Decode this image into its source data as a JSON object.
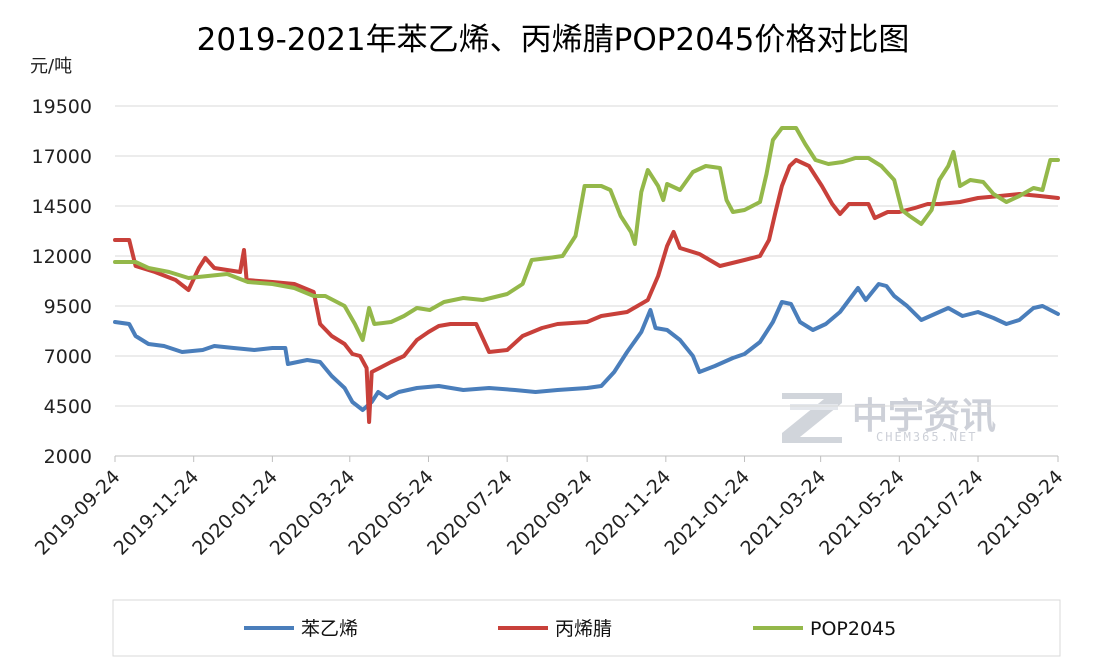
{
  "chart_data": {
    "type": "line",
    "title": "2019-2021年苯乙烯、丙烯腈POP2045价格对比图",
    "ylabel": "元/吨",
    "ylim": [
      2000,
      19500
    ],
    "yticks": [
      2000,
      4500,
      7000,
      9500,
      12000,
      14500,
      17000,
      19500
    ],
    "x_ticks": [
      "2019-09-24",
      "2019-11-24",
      "2020-01-24",
      "2020-03-24",
      "2020-05-24",
      "2020-07-24",
      "2020-09-24",
      "2020-11-24",
      "2021-01-24",
      "2021-03-24",
      "2021-05-24",
      "2021-07-24",
      "2021-09-24"
    ],
    "xlim": [
      "2019-09-24",
      "2021-09-24"
    ],
    "grid": "horizontal",
    "legend_position": "bottom",
    "colors": {
      "苯乙烯": "#4a7ebb",
      "丙烯腈": "#c8403a",
      "POP2045": "#94b84a"
    },
    "series": [
      {
        "name": "苯乙烯",
        "points": [
          [
            "2019-09-24",
            8700
          ],
          [
            "2019-10-05",
            8600
          ],
          [
            "2019-10-10",
            8000
          ],
          [
            "2019-10-20",
            7600
          ],
          [
            "2019-11-01",
            7500
          ],
          [
            "2019-11-15",
            7200
          ],
          [
            "2019-12-01",
            7300
          ],
          [
            "2019-12-10",
            7500
          ],
          [
            "2019-12-25",
            7400
          ],
          [
            "2020-01-10",
            7300
          ],
          [
            "2020-01-24",
            7400
          ],
          [
            "2020-02-03",
            7400
          ],
          [
            "2020-02-05",
            6600
          ],
          [
            "2020-02-20",
            6800
          ],
          [
            "2020-03-01",
            6700
          ],
          [
            "2020-03-10",
            6000
          ],
          [
            "2020-03-20",
            5400
          ],
          [
            "2020-03-26",
            4700
          ],
          [
            "2020-04-03",
            4300
          ],
          [
            "2020-04-10",
            4700
          ],
          [
            "2020-04-15",
            5200
          ],
          [
            "2020-04-22",
            4900
          ],
          [
            "2020-05-01",
            5200
          ],
          [
            "2020-05-15",
            5400
          ],
          [
            "2020-06-01",
            5500
          ],
          [
            "2020-06-20",
            5300
          ],
          [
            "2020-07-10",
            5400
          ],
          [
            "2020-07-30",
            5300
          ],
          [
            "2020-08-15",
            5200
          ],
          [
            "2020-09-01",
            5300
          ],
          [
            "2020-09-24",
            5400
          ],
          [
            "2020-10-05",
            5500
          ],
          [
            "2020-10-15",
            6200
          ],
          [
            "2020-10-25",
            7200
          ],
          [
            "2020-11-05",
            8200
          ],
          [
            "2020-11-12",
            9300
          ],
          [
            "2020-11-16",
            8400
          ],
          [
            "2020-11-25",
            8300
          ],
          [
            "2020-12-05",
            7800
          ],
          [
            "2020-12-15",
            7000
          ],
          [
            "2020-12-20",
            6200
          ],
          [
            "2021-01-01",
            6500
          ],
          [
            "2021-01-15",
            6900
          ],
          [
            "2021-01-24",
            7100
          ],
          [
            "2021-02-05",
            7700
          ],
          [
            "2021-02-15",
            8700
          ],
          [
            "2021-02-22",
            9700
          ],
          [
            "2021-03-01",
            9600
          ],
          [
            "2021-03-08",
            8700
          ],
          [
            "2021-03-18",
            8300
          ],
          [
            "2021-03-28",
            8600
          ],
          [
            "2021-04-08",
            9200
          ],
          [
            "2021-04-15",
            9800
          ],
          [
            "2021-04-22",
            10400
          ],
          [
            "2021-04-28",
            9800
          ],
          [
            "2021-05-08",
            10600
          ],
          [
            "2021-05-14",
            10500
          ],
          [
            "2021-05-20",
            10000
          ],
          [
            "2021-05-30",
            9500
          ],
          [
            "2021-06-10",
            8800
          ],
          [
            "2021-06-24",
            9200
          ],
          [
            "2021-07-01",
            9400
          ],
          [
            "2021-07-12",
            9000
          ],
          [
            "2021-07-24",
            9200
          ],
          [
            "2021-08-05",
            8900
          ],
          [
            "2021-08-15",
            8600
          ],
          [
            "2021-08-25",
            8800
          ],
          [
            "2021-09-05",
            9400
          ],
          [
            "2021-09-12",
            9500
          ],
          [
            "2021-09-24",
            9100
          ]
        ]
      },
      {
        "name": "丙烯腈",
        "points": [
          [
            "2019-09-24",
            12800
          ],
          [
            "2019-10-05",
            12800
          ],
          [
            "2019-10-10",
            11500
          ],
          [
            "2019-10-25",
            11200
          ],
          [
            "2019-11-10",
            10800
          ],
          [
            "2019-11-20",
            10300
          ],
          [
            "2019-11-28",
            11400
          ],
          [
            "2019-12-03",
            11900
          ],
          [
            "2019-12-10",
            11400
          ],
          [
            "2019-12-30",
            11200
          ],
          [
            "2020-01-02",
            12300
          ],
          [
            "2020-01-04",
            10800
          ],
          [
            "2020-01-24",
            10700
          ],
          [
            "2020-02-10",
            10600
          ],
          [
            "2020-02-25",
            10200
          ],
          [
            "2020-03-01",
            8600
          ],
          [
            "2020-03-10",
            8000
          ],
          [
            "2020-03-20",
            7600
          ],
          [
            "2020-03-26",
            7100
          ],
          [
            "2020-04-01",
            7000
          ],
          [
            "2020-04-06",
            6400
          ],
          [
            "2020-04-08",
            3700
          ],
          [
            "2020-04-10",
            6200
          ],
          [
            "2020-04-25",
            6700
          ],
          [
            "2020-05-05",
            7000
          ],
          [
            "2020-05-15",
            7800
          ],
          [
            "2020-05-24",
            8200
          ],
          [
            "2020-06-01",
            8500
          ],
          [
            "2020-06-10",
            8600
          ],
          [
            "2020-06-30",
            8600
          ],
          [
            "2020-07-10",
            7200
          ],
          [
            "2020-07-24",
            7300
          ],
          [
            "2020-08-05",
            8000
          ],
          [
            "2020-08-20",
            8400
          ],
          [
            "2020-09-01",
            8600
          ],
          [
            "2020-09-24",
            8700
          ],
          [
            "2020-10-05",
            9000
          ],
          [
            "2020-10-25",
            9200
          ],
          [
            "2020-11-10",
            9800
          ],
          [
            "2020-11-18",
            11000
          ],
          [
            "2020-11-25",
            12500
          ],
          [
            "2020-11-30",
            13200
          ],
          [
            "2020-12-05",
            12400
          ],
          [
            "2020-12-20",
            12100
          ],
          [
            "2021-01-05",
            11500
          ],
          [
            "2021-01-24",
            11800
          ],
          [
            "2021-02-05",
            12000
          ],
          [
            "2021-02-12",
            12800
          ],
          [
            "2021-02-17",
            14200
          ],
          [
            "2021-02-22",
            15500
          ],
          [
            "2021-02-28",
            16500
          ],
          [
            "2021-03-05",
            16800
          ],
          [
            "2021-03-15",
            16500
          ],
          [
            "2021-03-25",
            15500
          ],
          [
            "2021-04-02",
            14600
          ],
          [
            "2021-04-08",
            14100
          ],
          [
            "2021-04-15",
            14600
          ],
          [
            "2021-04-30",
            14600
          ],
          [
            "2021-05-05",
            13900
          ],
          [
            "2021-05-15",
            14200
          ],
          [
            "2021-05-24",
            14200
          ],
          [
            "2021-06-05",
            14400
          ],
          [
            "2021-06-15",
            14600
          ],
          [
            "2021-06-24",
            14600
          ],
          [
            "2021-07-10",
            14700
          ],
          [
            "2021-07-24",
            14900
          ],
          [
            "2021-08-10",
            15000
          ],
          [
            "2021-08-25",
            15100
          ],
          [
            "2021-09-10",
            15000
          ],
          [
            "2021-09-24",
            14900
          ]
        ]
      },
      {
        "name": "POP2045",
        "points": [
          [
            "2019-09-24",
            11700
          ],
          [
            "2019-10-10",
            11700
          ],
          [
            "2019-10-20",
            11400
          ],
          [
            "2019-11-05",
            11200
          ],
          [
            "2019-11-20",
            10900
          ],
          [
            "2019-12-05",
            11000
          ],
          [
            "2019-12-20",
            11100
          ],
          [
            "2020-01-05",
            10700
          ],
          [
            "2020-01-24",
            10600
          ],
          [
            "2020-02-10",
            10400
          ],
          [
            "2020-02-25",
            10000
          ],
          [
            "2020-03-05",
            10000
          ],
          [
            "2020-03-20",
            9500
          ],
          [
            "2020-03-28",
            8600
          ],
          [
            "2020-04-03",
            7800
          ],
          [
            "2020-04-08",
            9400
          ],
          [
            "2020-04-12",
            8600
          ],
          [
            "2020-04-25",
            8700
          ],
          [
            "2020-05-05",
            9000
          ],
          [
            "2020-05-15",
            9400
          ],
          [
            "2020-05-25",
            9300
          ],
          [
            "2020-06-05",
            9700
          ],
          [
            "2020-06-20",
            9900
          ],
          [
            "2020-07-05",
            9800
          ],
          [
            "2020-07-24",
            10100
          ],
          [
            "2020-08-05",
            10600
          ],
          [
            "2020-08-12",
            11800
          ],
          [
            "2020-08-25",
            11900
          ],
          [
            "2020-09-05",
            12000
          ],
          [
            "2020-09-15",
            13000
          ],
          [
            "2020-09-22",
            15500
          ],
          [
            "2020-10-05",
            15500
          ],
          [
            "2020-10-12",
            15300
          ],
          [
            "2020-10-20",
            14000
          ],
          [
            "2020-10-28",
            13200
          ],
          [
            "2020-10-31",
            12600
          ],
          [
            "2020-11-05",
            15200
          ],
          [
            "2020-11-10",
            16300
          ],
          [
            "2020-11-18",
            15500
          ],
          [
            "2020-11-22",
            14800
          ],
          [
            "2020-11-25",
            15600
          ],
          [
            "2020-12-05",
            15300
          ],
          [
            "2020-12-15",
            16200
          ],
          [
            "2020-12-25",
            16500
          ],
          [
            "2021-01-05",
            16400
          ],
          [
            "2021-01-10",
            14800
          ],
          [
            "2021-01-15",
            14200
          ],
          [
            "2021-01-24",
            14300
          ],
          [
            "2021-02-05",
            14700
          ],
          [
            "2021-02-10",
            16100
          ],
          [
            "2021-02-15",
            17800
          ],
          [
            "2021-02-22",
            18400
          ],
          [
            "2021-03-05",
            18400
          ],
          [
            "2021-03-12",
            17600
          ],
          [
            "2021-03-20",
            16800
          ],
          [
            "2021-03-30",
            16600
          ],
          [
            "2021-04-10",
            16700
          ],
          [
            "2021-04-20",
            16900
          ],
          [
            "2021-04-30",
            16900
          ],
          [
            "2021-05-10",
            16500
          ],
          [
            "2021-05-20",
            15800
          ],
          [
            "2021-05-26",
            14300
          ],
          [
            "2021-06-01",
            14000
          ],
          [
            "2021-06-10",
            13600
          ],
          [
            "2021-06-18",
            14300
          ],
          [
            "2021-06-24",
            15800
          ],
          [
            "2021-07-01",
            16500
          ],
          [
            "2021-07-05",
            17200
          ],
          [
            "2021-07-10",
            15500
          ],
          [
            "2021-07-18",
            15800
          ],
          [
            "2021-07-28",
            15700
          ],
          [
            "2021-08-05",
            15100
          ],
          [
            "2021-08-15",
            14700
          ],
          [
            "2021-08-25",
            15000
          ],
          [
            "2021-09-05",
            15400
          ],
          [
            "2021-09-12",
            15300
          ],
          [
            "2021-09-18",
            16800
          ],
          [
            "2021-09-24",
            16800
          ]
        ]
      }
    ]
  },
  "watermark": {
    "logo_text": "中宇资讯",
    "sub_text": "CHEM365.NET"
  }
}
